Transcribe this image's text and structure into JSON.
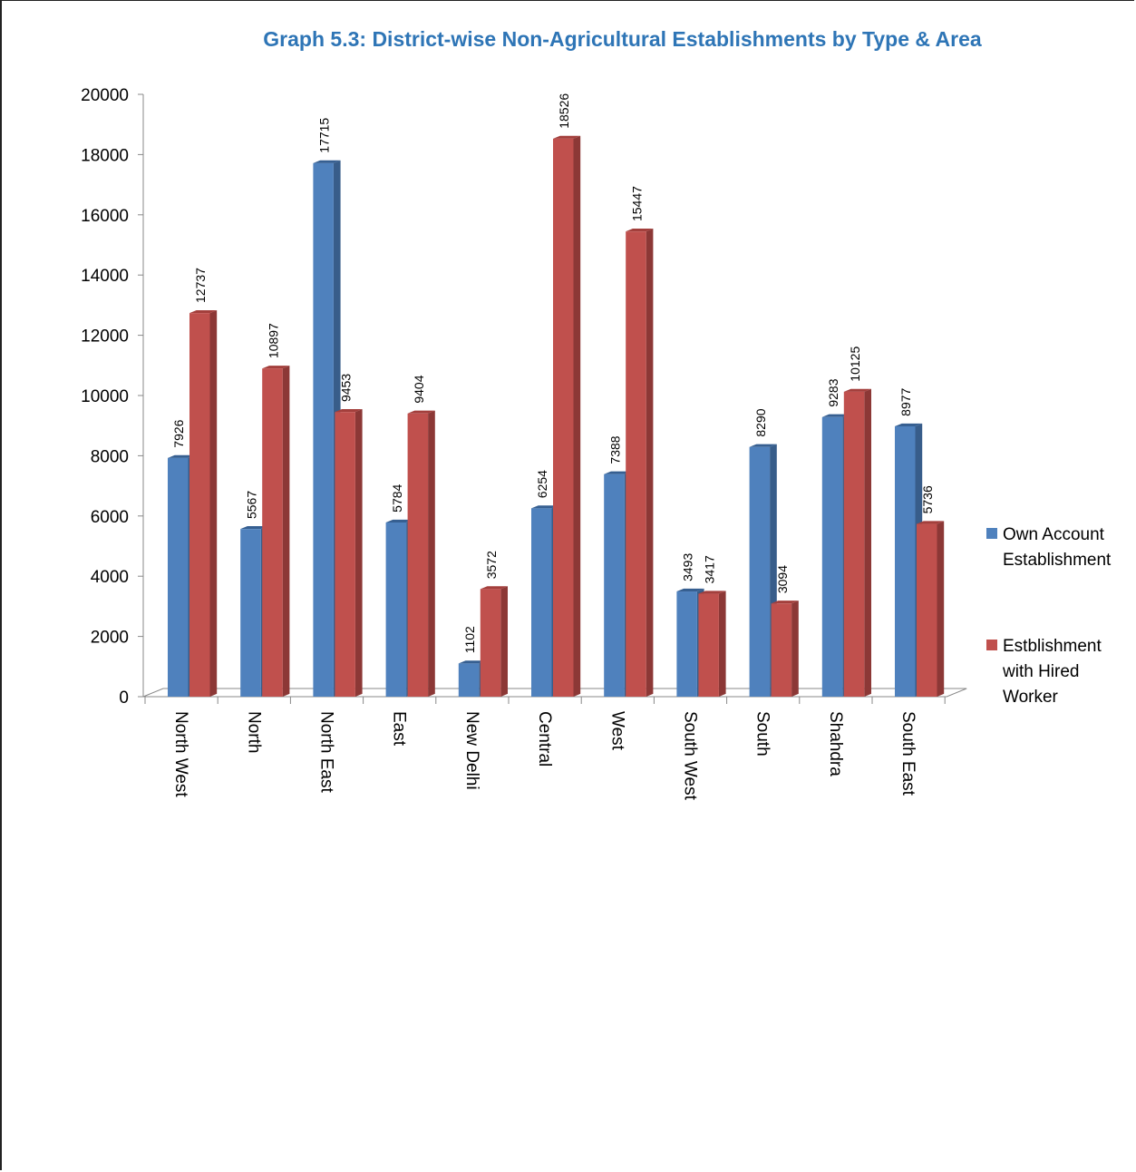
{
  "chart_data": {
    "type": "bar",
    "title": "Graph 5.3: District-wise Non-Agricultural Establishments by Type & Area",
    "categories": [
      "North West",
      "North",
      "North East",
      "East",
      "New Delhi",
      "Central",
      "West",
      "South West",
      "South",
      "Shahdra",
      "South East"
    ],
    "series": [
      {
        "name": "Own Account Establishment",
        "legend_lines": [
          "Own Account",
          "Establishment"
        ],
        "color": "#4F81BD",
        "side": "#385D8A",
        "top": "#365F91",
        "values": [
          7926,
          5567,
          17715,
          5784,
          1102,
          6254,
          7388,
          3493,
          8290,
          9283,
          8977
        ]
      },
      {
        "name": "Estblishment with Hired Worker",
        "legend_lines": [
          "Estblishment",
          "with Hired",
          "Worker"
        ],
        "color": "#C0504D",
        "side": "#8C3836",
        "top": "#A33F3C",
        "values": [
          12737,
          10897,
          9453,
          9404,
          3572,
          18526,
          15447,
          3417,
          3094,
          10125,
          5736
        ]
      }
    ],
    "yticks": [
      0,
      2000,
      4000,
      6000,
      8000,
      10000,
      12000,
      14000,
      16000,
      18000,
      20000
    ],
    "ylim": [
      0,
      20000
    ],
    "grid": false,
    "legend_position": "right"
  }
}
